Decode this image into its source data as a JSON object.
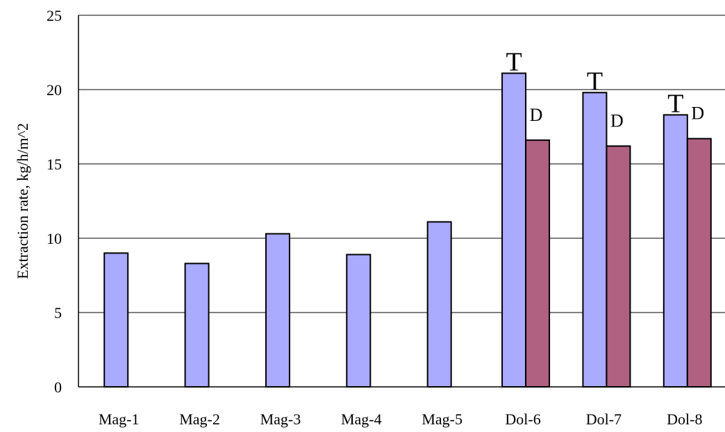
{
  "chart_data": {
    "type": "bar",
    "title": "",
    "xlabel": "",
    "ylabel": "Extraction rate, kg/h/m^2",
    "ylim": [
      0,
      25
    ],
    "yticks": [
      0,
      5,
      10,
      15,
      20,
      25
    ],
    "grid": true,
    "legend": "none",
    "categories": [
      "Mag-1",
      "Mag-2",
      "Mag-3",
      "Mag-4",
      "Mag-5",
      "Dol-6",
      "Dol-7",
      "Dol-8"
    ],
    "series": [
      {
        "color": "#aaaaff",
        "values": [
          9.0,
          8.3,
          10.3,
          8.9,
          11.1,
          21.1,
          19.8,
          18.3
        ],
        "labels": [
          "",
          "",
          "",
          "",
          "",
          "T",
          "T",
          "T"
        ]
      },
      {
        "color": "#b06080",
        "values": [
          null,
          null,
          null,
          null,
          null,
          16.6,
          16.2,
          16.7
        ],
        "labels": [
          "",
          "",
          "",
          "",
          "",
          "D",
          "D",
          "D"
        ]
      }
    ]
  }
}
